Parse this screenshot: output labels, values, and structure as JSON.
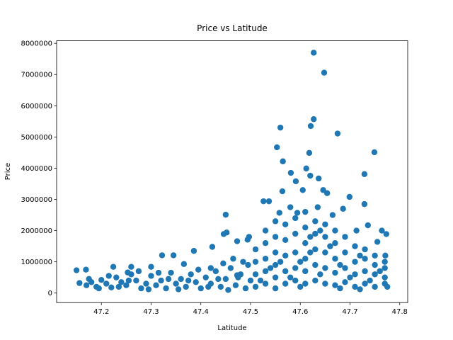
{
  "chart_data": {
    "type": "scatter",
    "title": "Price vs Latitude",
    "xlabel": "Latitude",
    "ylabel": "Price",
    "color": "#1f77b4",
    "xlim": [
      47.11,
      47.816
    ],
    "ylim": [
      -306000,
      8081000
    ],
    "xticks": [
      47.2,
      47.3,
      47.4,
      47.5,
      47.6,
      47.7,
      47.8
    ],
    "yticks": [
      0,
      1000000,
      2000000,
      3000000,
      4000000,
      5000000,
      6000000,
      7000000,
      8000000
    ],
    "x": [
      47.627,
      47.648,
      47.627,
      47.621,
      47.675,
      47.56,
      47.553,
      47.565,
      47.618,
      47.749,
      47.581,
      47.612,
      47.637,
      47.729,
      47.591,
      47.62,
      47.646,
      47.699,
      47.729,
      47.564,
      47.526,
      47.537,
      47.45,
      47.446,
      47.452,
      47.423,
      47.386,
      47.322,
      47.345,
      47.473,
      47.497,
      47.494,
      47.15,
      47.169,
      47.156,
      47.224,
      47.253,
      47.26,
      47.3,
      47.366,
      47.42,
      47.473,
      47.773,
      47.764,
      47.771,
      47.755,
      47.736,
      47.713,
      47.686,
      47.665,
      47.654,
      47.635,
      47.605,
      47.594,
      47.58,
      47.558,
      47.17,
      47.18,
      47.19,
      47.2,
      47.21,
      47.22,
      47.23,
      47.24,
      47.25,
      47.26,
      47.27,
      47.28,
      47.29,
      47.3,
      47.31,
      47.32,
      47.33,
      47.34,
      47.35,
      47.36,
      47.37,
      47.38,
      47.39,
      47.4,
      47.41,
      47.42,
      47.43,
      47.44,
      47.45,
      47.46,
      47.47,
      47.48,
      47.49,
      47.5,
      47.175,
      47.195,
      47.215,
      47.235,
      47.255,
      47.275,
      47.295,
      47.315,
      47.335,
      47.355,
      47.375,
      47.395,
      47.415,
      47.435,
      47.455,
      47.475,
      47.495,
      47.485,
      47.465,
      47.445,
      47.51,
      47.51,
      47.51,
      47.51,
      47.53,
      47.53,
      47.53,
      47.53,
      47.53,
      47.55,
      47.55,
      47.55,
      47.55,
      47.55,
      47.55,
      47.57,
      47.57,
      47.57,
      47.57,
      47.57,
      47.59,
      47.59,
      47.59,
      47.59,
      47.59,
      47.61,
      47.61,
      47.61,
      47.61,
      47.61,
      47.61,
      47.63,
      47.63,
      47.63,
      47.63,
      47.63,
      47.65,
      47.65,
      47.65,
      47.65,
      47.65,
      47.67,
      47.67,
      47.67,
      47.67,
      47.67,
      47.69,
      47.69,
      47.69,
      47.69,
      47.71,
      47.71,
      47.71,
      47.71,
      47.73,
      47.73,
      47.73,
      47.73,
      47.75,
      47.75,
      47.75,
      47.75,
      47.77,
      47.77,
      47.77,
      47.77,
      47.52,
      47.54,
      47.56,
      47.58,
      47.6,
      47.62,
      47.64,
      47.66,
      47.68,
      47.7,
      47.72,
      47.74,
      47.76,
      47.775,
      47.62,
      47.64,
      47.6,
      47.68,
      47.72
    ],
    "values": [
      7700000,
      7060000,
      5570000,
      5350000,
      5110000,
      5300000,
      4670000,
      4220000,
      4490000,
      4510000,
      3850000,
      3990000,
      3670000,
      3810000,
      3580000,
      3760000,
      3300000,
      3080000,
      2850000,
      3260000,
      2940000,
      2940000,
      2510000,
      1890000,
      1940000,
      1480000,
      1350000,
      1210000,
      1210000,
      1660000,
      1800000,
      1710000,
      730000,
      750000,
      320000,
      840000,
      660000,
      840000,
      840000,
      930000,
      800000,
      570000,
      1890000,
      2000000,
      1200000,
      1640000,
      2170000,
      2000000,
      2700000,
      2500000,
      3200000,
      2750000,
      3300000,
      2570000,
      2750000,
      2570000,
      250000,
      350000,
      200000,
      420000,
      300000,
      180000,
      500000,
      350000,
      250000,
      600000,
      400000,
      150000,
      300000,
      550000,
      250000,
      400000,
      150000,
      650000,
      300000,
      450000,
      200000,
      600000,
      350000,
      150000,
      500000,
      300000,
      700000,
      200000,
      450000,
      800000,
      250000,
      600000,
      150000,
      400000,
      450000,
      150000,
      550000,
      200000,
      400000,
      700000,
      120000,
      650000,
      450000,
      120000,
      400000,
      750000,
      200000,
      450000,
      100000,
      500000,
      900000,
      1000000,
      1100000,
      950000,
      200000,
      600000,
      1000000,
      1400000,
      300000,
      700000,
      1100000,
      1600000,
      2000000,
      150000,
      500000,
      900000,
      1300000,
      1800000,
      2300000,
      300000,
      700000,
      1200000,
      1700000,
      2200000,
      400000,
      800000,
      1300000,
      1900000,
      2400000,
      300000,
      700000,
      1100000,
      1600000,
      2100000,
      2600000,
      400000,
      900000,
      1400000,
      1900000,
      2300000,
      300000,
      800000,
      1300000,
      1800000,
      2200000,
      250000,
      650000,
      1100000,
      1600000,
      2000000,
      350000,
      800000,
      1300000,
      1800000,
      200000,
      600000,
      1000000,
      1500000,
      300000,
      700000,
      1100000,
      1400000,
      200000,
      600000,
      900000,
      1200000,
      300000,
      500000,
      800000,
      1000000,
      400000,
      800000,
      1000000,
      500000,
      1000000,
      1300000,
      600000,
      1500000,
      900000,
      500000,
      1200000,
      400000,
      700000,
      200000,
      1800000,
      2000000,
      200000,
      150000,
      120000
    ]
  }
}
